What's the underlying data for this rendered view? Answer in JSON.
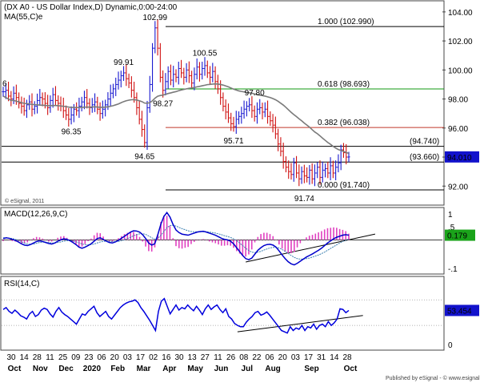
{
  "header": {
    "title": "(DX A0 - US Dollar Index,D) Dynamic,0:00-24:00",
    "ma_label": "MA(55,C)e",
    "watermark": "© eSignal, 2011",
    "footer": "Published by eSignal - © www.esignal.com"
  },
  "colors": {
    "background": "#ffffff",
    "bullish_bar": "#1a1ad0",
    "bearish_bar": "#d01010",
    "ma_line": "#7a7a7a",
    "fib_red": "#c0392b",
    "fib_green": "#119911",
    "macd_line": "#0000cc",
    "signal_line": "#3a7fb0",
    "histogram": "#e040c0",
    "rsi_line": "#0000dd",
    "value_box": "#1212cc"
  },
  "chart_data": [
    {
      "type": "line",
      "panel": "price",
      "title": "(DX A0 - US Dollar Index,D) Dynamic,0:00-24:00",
      "ylim": [
        90.8,
        104.6
      ],
      "yticks": [
        "104.00",
        "102.00",
        "100.00",
        "98.00",
        "96.00",
        "94.00",
        "92.00"
      ],
      "series": [
        {
          "name": "",
          "description": "approximate daily closes",
          "values": [
            98.5,
            98.6,
            98.2,
            98.0,
            98.4,
            98.1,
            97.7,
            97.5,
            97.2,
            97.6,
            97.8,
            97.3,
            97.5,
            97.9,
            98.1,
            98.0,
            97.7,
            97.4,
            97.9,
            98.3,
            97.9,
            97.7,
            97.5,
            97.2,
            96.9,
            96.6,
            96.9,
            97.3,
            97.2,
            97.5,
            97.8,
            98.1,
            97.7,
            97.4,
            97.6,
            97.8,
            97.3,
            97.0,
            97.3,
            97.6,
            98.0,
            98.4,
            98.7,
            99.0,
            99.3,
            99.6,
            99.8,
            99.4,
            99.1,
            98.6,
            98.1,
            97.4,
            96.6,
            95.9,
            95.0,
            97.4,
            99.0,
            101.5,
            102.9,
            101.5,
            99.5,
            98.6,
            99.2,
            99.9,
            99.3,
            99.7,
            99.5,
            100.1,
            99.8,
            99.5,
            100.0,
            99.6,
            99.1,
            99.7,
            100.2,
            99.7,
            100.1,
            100.3,
            99.8,
            99.5,
            99.9,
            99.2,
            98.7,
            98.1,
            97.5,
            97.1,
            96.7,
            96.3,
            96.1,
            96.6,
            96.8,
            97.0,
            97.3,
            97.5,
            97.6,
            97.2,
            96.8,
            97.3,
            97.4,
            97.1,
            97.3,
            96.8,
            96.5,
            96.2,
            95.6,
            94.9,
            94.4,
            93.7,
            93.3,
            93.0,
            92.8,
            93.6,
            92.9,
            92.5,
            93.0,
            92.7,
            92.6,
            93.1,
            92.5,
            92.9,
            93.3,
            92.6,
            93.1,
            93.2,
            92.9,
            93.4,
            92.9,
            93.3,
            93.6,
            94.5,
            94.3,
            94.0,
            94.01
          ]
        },
        {
          "name": "MA(55,C)e",
          "values": [
            98.2,
            98.1,
            98.0,
            97.9,
            97.9,
            97.85,
            97.8,
            97.75,
            97.7,
            97.68,
            97.66,
            97.63,
            97.61,
            97.6,
            97.58,
            97.57,
            97.56,
            97.54,
            97.54,
            97.55,
            97.55,
            97.54,
            97.52,
            97.5,
            97.48,
            97.44,
            97.42,
            97.42,
            97.41,
            97.41,
            97.42,
            97.44,
            97.44,
            97.44,
            97.45,
            97.46,
            97.45,
            97.43,
            97.43,
            97.44,
            97.46,
            97.5,
            97.54,
            97.6,
            97.66,
            97.74,
            97.82,
            97.88,
            97.92,
            97.95,
            97.95,
            97.93,
            97.88,
            97.82,
            97.72,
            97.71,
            97.75,
            97.88,
            98.06,
            98.19,
            98.24,
            98.27,
            98.32,
            98.38,
            98.42,
            98.47,
            98.51,
            98.57,
            98.62,
            98.66,
            98.7,
            98.74,
            98.76,
            98.79,
            98.84,
            98.87,
            98.91,
            98.95,
            98.99,
            99.01,
            99.03,
            99.04,
            99.03,
            99.0,
            98.96,
            98.9,
            98.84,
            98.76,
            98.68,
            98.62,
            98.56,
            98.52,
            98.49,
            98.46,
            98.43,
            98.4,
            98.35,
            98.31,
            98.27,
            98.23,
            98.2,
            98.15,
            98.1,
            98.03,
            97.95,
            97.84,
            97.71,
            97.58,
            97.42,
            97.25,
            97.08,
            96.93,
            96.79,
            96.64,
            96.5,
            96.34,
            96.2,
            96.06,
            95.89,
            95.73,
            95.61,
            95.46,
            95.3,
            95.15,
            95.0,
            94.88,
            94.74,
            94.62,
            94.52,
            94.46,
            94.39,
            94.32,
            94.25
          ]
        }
      ],
      "fibonacci": [
        {
          "label": "1.000 (102.990)",
          "value": 102.99,
          "color": "#000000"
        },
        {
          "label": "0.618 (98.693)",
          "value": 98.693,
          "color": "#119911"
        },
        {
          "label": "0.382 (96.038)",
          "value": 96.038,
          "color": "#c0392b"
        },
        {
          "label": "0.000 (91.740)",
          "value": 91.74,
          "color": "#000000"
        }
      ],
      "levels": [
        {
          "label": "(94.740)",
          "value": 94.74
        },
        {
          "label": "(93.660)",
          "value": 93.66
        }
      ],
      "annotations": [
        {
          "text": "102.99",
          "x": 58,
          "y": 102.99
        },
        {
          "text": "99.91",
          "x": 46,
          "y": 99.91
        },
        {
          "text": "100.55",
          "x": 77,
          "y": 100.55
        },
        {
          "text": "98.27",
          "x": 61,
          "y": 98.27
        },
        {
          "text": "97.80",
          "x": 96,
          "y": 97.8
        },
        {
          "text": "96.35",
          "x": 26,
          "y": 96.35
        },
        {
          "text": "95.71",
          "x": 88,
          "y": 95.71
        },
        {
          "text": "94.65",
          "x": 54,
          "y": 94.65
        },
        {
          "text": "91.74",
          "x": 115,
          "y": 91.74
        }
      ],
      "current_value": "94.010",
      "left_edge_text": "6"
    },
    {
      "type": "line",
      "panel": "macd",
      "title": "MACD(12,26,9,C)",
      "ylim": [
        -1.25,
        1.15
      ],
      "yticks": [
        "1",
        ".5",
        "-.1"
      ],
      "current_value": "0.179",
      "series": [
        {
          "name": "MACD",
          "values": [
            0.05,
            0.08,
            0.06,
            0.02,
            -0.02,
            -0.08,
            -0.15,
            -0.2,
            -0.22,
            -0.18,
            -0.12,
            -0.06,
            -0.04,
            -0.06,
            -0.1,
            -0.14,
            -0.16,
            -0.12,
            -0.05,
            0.0,
            0.04,
            0.02,
            -0.03,
            -0.1,
            -0.18,
            -0.28,
            -0.32,
            -0.28,
            -0.22,
            -0.15,
            -0.05,
            0.05,
            0.08,
            0.02,
            -0.05,
            -0.1,
            -0.12,
            -0.08,
            -0.02,
            0.06,
            0.14,
            0.22,
            0.3,
            0.35,
            0.34,
            0.3,
            0.2,
            0.05,
            -0.12,
            -0.2,
            -0.15,
            0.2,
            0.6,
            0.9,
            1.05,
            0.88,
            0.6,
            0.38,
            0.28,
            0.22,
            0.2,
            0.18,
            0.22,
            0.26,
            0.3,
            0.32,
            0.33,
            0.3,
            0.26,
            0.22,
            0.18,
            0.12,
            0.06,
            0.02,
            0.0,
            -0.05,
            -0.15,
            -0.3,
            -0.45,
            -0.6,
            -0.72,
            -0.76,
            -0.7,
            -0.55,
            -0.4,
            -0.3,
            -0.22,
            -0.18,
            -0.17,
            -0.2,
            -0.28,
            -0.42,
            -0.58,
            -0.72,
            -0.84,
            -0.92,
            -0.96,
            -0.9,
            -0.82,
            -0.74,
            -0.66,
            -0.6,
            -0.54,
            -0.47,
            -0.4,
            -0.32,
            -0.22,
            -0.12,
            -0.04,
            0.04,
            0.1,
            0.14,
            0.18,
            0.2,
            0.179
          ]
        },
        {
          "name": "Signal",
          "values": [
            0.08,
            0.08,
            0.07,
            0.05,
            0.02,
            -0.02,
            -0.07,
            -0.12,
            -0.16,
            -0.17,
            -0.16,
            -0.13,
            -0.1,
            -0.09,
            -0.09,
            -0.1,
            -0.12,
            -0.12,
            -0.1,
            -0.08,
            -0.05,
            -0.03,
            -0.03,
            -0.04,
            -0.07,
            -0.11,
            -0.16,
            -0.18,
            -0.19,
            -0.18,
            -0.16,
            -0.12,
            -0.08,
            -0.06,
            -0.05,
            -0.06,
            -0.07,
            -0.07,
            -0.06,
            -0.03,
            0.0,
            0.05,
            0.1,
            0.16,
            0.2,
            0.23,
            0.24,
            0.21,
            0.15,
            0.08,
            0.03,
            0.06,
            0.17,
            0.32,
            0.47,
            0.55,
            0.56,
            0.53,
            0.48,
            0.43,
            0.39,
            0.35,
            0.32,
            0.31,
            0.31,
            0.31,
            0.31,
            0.31,
            0.3,
            0.28,
            0.26,
            0.23,
            0.2,
            0.16,
            0.13,
            0.09,
            0.04,
            -0.03,
            -0.12,
            -0.22,
            -0.32,
            -0.41,
            -0.47,
            -0.49,
            -0.47,
            -0.44,
            -0.39,
            -0.35,
            -0.31,
            -0.29,
            -0.29,
            -0.31,
            -0.37,
            -0.44,
            -0.52,
            -0.6,
            -0.67,
            -0.72,
            -0.74,
            -0.74,
            -0.72,
            -0.7,
            -0.66,
            -0.62,
            -0.58,
            -0.53,
            -0.47,
            -0.4,
            -0.33,
            -0.26,
            -0.19,
            -0.12,
            -0.06,
            -0.01,
            0.03
          ]
        }
      ],
      "trendline": {
        "from": [
          80,
          -0.85
        ],
        "to": [
          119,
          0.1
        ]
      }
    },
    {
      "type": "line",
      "panel": "rsi",
      "title": "RSI(14,C)",
      "ylim": [
        -5,
        103
      ],
      "yticks": [
        "0"
      ],
      "current_value": "53.454",
      "series": [
        {
          "name": "RSI",
          "values": [
            55,
            58,
            52,
            49,
            54,
            50,
            45,
            43,
            40,
            48,
            52,
            44,
            47,
            54,
            57,
            55,
            48,
            43,
            52,
            58,
            51,
            47,
            44,
            40,
            36,
            32,
            40,
            48,
            46,
            52,
            56,
            60,
            50,
            44,
            48,
            52,
            44,
            40,
            46,
            52,
            58,
            62,
            65,
            67,
            68,
            70,
            66,
            58,
            52,
            45,
            38,
            30,
            22,
            52,
            68,
            72,
            60,
            48,
            55,
            62,
            54,
            58,
            56,
            62,
            57,
            53,
            60,
            54,
            47,
            56,
            62,
            55,
            59,
            62,
            55,
            50,
            56,
            44,
            40,
            33,
            30,
            28,
            28,
            35,
            40,
            44,
            50,
            52,
            46,
            48,
            51,
            46,
            40,
            34,
            28,
            22,
            20,
            18,
            28,
            22,
            26,
            24,
            30,
            22,
            28,
            26,
            32,
            24,
            30,
            32,
            28,
            36,
            30,
            34,
            40,
            56,
            55,
            50,
            53.454
          ]
        }
      ],
      "trendline": {
        "from": [
          80,
          20
        ],
        "to": [
          119,
          48
        ]
      }
    }
  ],
  "x_axis": {
    "days": [
      "30",
      "14",
      "28",
      "11",
      "25",
      "09",
      "23",
      "06",
      "20",
      "03",
      "17",
      "02",
      "16",
      "30",
      "13",
      "27",
      "11",
      "26",
      "08",
      "22",
      "06",
      "20",
      "03",
      "17",
      "31",
      "14",
      "28"
    ],
    "months": [
      "Oct",
      "Nov",
      "Dec",
      "2020",
      "Feb",
      "Mar",
      "Apr",
      "May",
      "Jun",
      "Jul",
      "Aug",
      "Sep",
      "Oct"
    ]
  }
}
